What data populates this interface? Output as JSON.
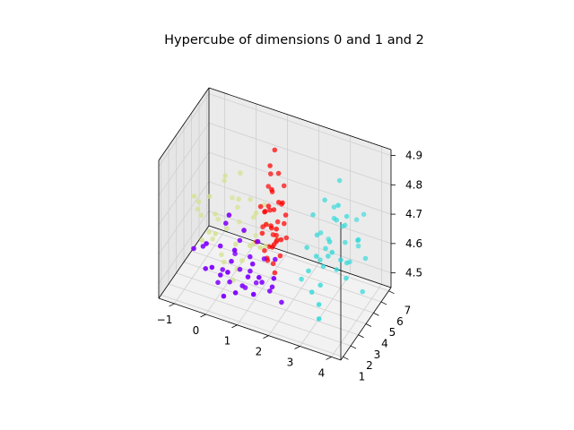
{
  "chart_data": {
    "type": "scatter",
    "title": "Hypercube of dimensions 0 and 1 and 2",
    "xlim": [
      -1.5,
      4.3
    ],
    "ylim": [
      0.7,
      7.3
    ],
    "zlim": [
      4.45,
      4.92
    ],
    "x_ticks": [
      "−1",
      "0",
      "1",
      "2",
      "3",
      "4"
    ],
    "y_ticks": [
      "1",
      "2",
      "3",
      "4",
      "5",
      "6",
      "7"
    ],
    "z_ticks": [
      "4.5",
      "4.6",
      "4.7",
      "4.8",
      "4.9"
    ],
    "grid": true,
    "colors": {
      "purple": "#7f00ff",
      "cyan": "#2ad8d8",
      "khaki": "#d4e28c",
      "red": "#ff0000"
    },
    "series": [
      {
        "color": "#7f00ff",
        "points": [
          [
            0.0,
            1.5,
            4.58
          ],
          [
            0.2,
            1.8,
            4.55
          ],
          [
            0.5,
            2.0,
            4.6
          ],
          [
            0.8,
            2.2,
            4.52
          ],
          [
            1.0,
            2.4,
            4.57
          ],
          [
            1.2,
            1.9,
            4.62
          ],
          [
            0.3,
            2.6,
            4.5
          ],
          [
            0.7,
            1.6,
            4.66
          ],
          [
            1.4,
            2.3,
            4.55
          ],
          [
            0.1,
            2.2,
            4.63
          ],
          [
            -0.3,
            1.9,
            4.55
          ],
          [
            0.9,
            2.8,
            4.6
          ],
          [
            1.6,
            2.5,
            4.52
          ],
          [
            0.4,
            1.4,
            4.5
          ],
          [
            1.1,
            1.7,
            4.58
          ],
          [
            0.6,
            2.7,
            4.55
          ],
          [
            1.3,
            3.0,
            4.6
          ],
          [
            0.0,
            2.9,
            4.52
          ],
          [
            -0.5,
            2.4,
            4.6
          ],
          [
            1.8,
            2.0,
            4.56
          ],
          [
            0.8,
            1.3,
            4.53
          ],
          [
            0.5,
            3.1,
            4.63
          ],
          [
            1.5,
            1.5,
            4.6
          ],
          [
            -0.2,
            1.6,
            4.65
          ],
          [
            1.0,
            3.2,
            4.5
          ],
          [
            0.2,
            2.5,
            4.7
          ],
          [
            1.7,
            2.8,
            4.62
          ],
          [
            0.9,
            2.0,
            4.72
          ],
          [
            -0.7,
            2.0,
            4.6
          ],
          [
            1.2,
            2.6,
            4.67
          ],
          [
            0.3,
            3.3,
            4.57
          ],
          [
            2.0,
            2.4,
            4.5
          ],
          [
            0.7,
            3.0,
            4.48
          ],
          [
            1.4,
            1.2,
            4.55
          ],
          [
            -0.1,
            2.7,
            4.48
          ],
          [
            0.6,
            1.1,
            4.6
          ],
          [
            1.9,
            1.8,
            4.6
          ],
          [
            0.4,
            2.1,
            4.75
          ]
        ]
      },
      {
        "color": "#2ad8d8",
        "points": [
          [
            2.5,
            5.0,
            4.65
          ],
          [
            2.7,
            5.3,
            4.6
          ],
          [
            3.0,
            5.5,
            4.7
          ],
          [
            3.2,
            5.8,
            4.62
          ],
          [
            2.8,
            6.0,
            4.68
          ],
          [
            3.4,
            5.2,
            4.58
          ],
          [
            2.6,
            5.6,
            4.75
          ],
          [
            3.1,
            6.2,
            4.66
          ],
          [
            2.9,
            4.8,
            4.6
          ],
          [
            3.3,
            5.6,
            4.72
          ],
          [
            2.4,
            5.9,
            4.62
          ],
          [
            3.6,
            5.9,
            4.64
          ],
          [
            2.7,
            6.4,
            4.7
          ],
          [
            3.0,
            4.6,
            4.66
          ],
          [
            3.5,
            6.3,
            4.6
          ],
          [
            2.3,
            5.3,
            4.7
          ],
          [
            3.2,
            4.9,
            4.78
          ],
          [
            2.6,
            4.5,
            4.6
          ],
          [
            3.7,
            5.4,
            4.66
          ],
          [
            2.9,
            6.7,
            4.63
          ],
          [
            3.4,
            4.4,
            4.62
          ],
          [
            2.5,
            6.5,
            4.58
          ],
          [
            3.1,
            5.1,
            4.55
          ],
          [
            2.8,
            4.2,
            4.52
          ],
          [
            3.6,
            6.6,
            4.7
          ],
          [
            2.2,
            4.9,
            4.6
          ],
          [
            3.3,
            6.9,
            4.66
          ],
          [
            2.7,
            5.0,
            4.55
          ],
          [
            3.0,
            5.9,
            4.82
          ],
          [
            3.8,
            6.0,
            4.58
          ],
          [
            2.4,
            4.3,
            4.55
          ],
          [
            3.2,
            4.1,
            4.65
          ],
          [
            2.6,
            3.9,
            4.5
          ],
          [
            3.5,
            4.7,
            4.55
          ],
          [
            2.9,
            3.6,
            4.48
          ],
          [
            2.1,
            4.6,
            4.5
          ],
          [
            3.9,
            5.2,
            4.5
          ],
          [
            3.0,
            3.2,
            4.45
          ],
          [
            2.5,
            5.4,
            4.55
          ],
          [
            3.3,
            6.0,
            4.55
          ]
        ]
      },
      {
        "color": "#d4e28c",
        "points": [
          [
            -0.5,
            4.0,
            4.65
          ],
          [
            -0.2,
            4.3,
            4.6
          ],
          [
            0.1,
            4.6,
            4.7
          ],
          [
            0.4,
            4.1,
            4.62
          ],
          [
            -0.8,
            4.5,
            4.68
          ],
          [
            0.2,
            3.8,
            4.58
          ],
          [
            -0.4,
            4.9,
            4.75
          ],
          [
            0.6,
            4.5,
            4.66
          ],
          [
            -1.0,
            4.2,
            4.62
          ],
          [
            0.0,
            5.1,
            4.6
          ],
          [
            0.5,
            4.9,
            4.55
          ],
          [
            -0.6,
            3.6,
            4.6
          ],
          [
            0.8,
            4.0,
            4.7
          ],
          [
            -0.3,
            5.4,
            4.66
          ],
          [
            -1.2,
            4.7,
            4.64
          ],
          [
            0.3,
            5.3,
            4.68
          ],
          [
            -0.9,
            3.9,
            4.55
          ],
          [
            0.7,
            3.6,
            4.6
          ],
          [
            -0.1,
            3.5,
            4.52
          ],
          [
            0.9,
            5.0,
            4.63
          ],
          [
            -0.7,
            5.2,
            4.58
          ],
          [
            0.2,
            4.4,
            4.8
          ],
          [
            -1.3,
            5.0,
            4.6
          ],
          [
            0.5,
            3.4,
            4.55
          ],
          [
            -0.4,
            4.4,
            4.5
          ],
          [
            1.0,
            4.4,
            4.58
          ],
          [
            -0.2,
            5.7,
            4.62
          ],
          [
            0.4,
            5.6,
            4.55
          ],
          [
            -1.1,
            3.7,
            4.7
          ],
          [
            0.1,
            3.9,
            4.45
          ],
          [
            -0.6,
            5.6,
            4.7
          ],
          [
            1.1,
            3.3,
            4.62
          ],
          [
            -0.8,
            4.9,
            4.52
          ],
          [
            0.6,
            5.9,
            4.65
          ],
          [
            -0.3,
            3.2,
            4.62
          ],
          [
            1.3,
            4.8,
            4.6
          ],
          [
            0.0,
            4.8,
            4.45
          ]
        ]
      },
      {
        "color": "#ff0000",
        "points": [
          [
            1.0,
            4.5,
            4.65
          ],
          [
            1.2,
            4.7,
            4.7
          ],
          [
            1.1,
            4.9,
            4.75
          ],
          [
            1.3,
            4.6,
            4.62
          ],
          [
            0.9,
            4.8,
            4.68
          ],
          [
            1.4,
            5.0,
            4.72
          ],
          [
            1.2,
            4.4,
            4.78
          ],
          [
            1.0,
            5.1,
            4.8
          ],
          [
            1.3,
            4.3,
            4.6
          ],
          [
            1.1,
            4.6,
            4.85
          ],
          [
            1.5,
            4.8,
            4.66
          ],
          [
            0.8,
            4.6,
            4.7
          ],
          [
            1.2,
            5.2,
            4.64
          ],
          [
            1.4,
            4.5,
            4.74
          ],
          [
            1.0,
            4.3,
            4.7
          ],
          [
            1.1,
            5.0,
            4.6
          ],
          [
            1.3,
            4.9,
            4.82
          ],
          [
            0.9,
            4.4,
            4.62
          ],
          [
            1.2,
            4.8,
            4.9
          ],
          [
            1.4,
            4.2,
            4.66
          ],
          [
            1.0,
            4.9,
            4.56
          ],
          [
            1.6,
            4.6,
            4.7
          ],
          [
            0.8,
            4.9,
            4.62
          ],
          [
            1.3,
            5.3,
            4.7
          ],
          [
            1.1,
            4.2,
            4.55
          ],
          [
            1.5,
            5.1,
            4.6
          ],
          [
            1.2,
            4.5,
            4.58
          ],
          [
            0.9,
            5.2,
            4.75
          ],
          [
            1.4,
            4.7,
            4.55
          ],
          [
            1.0,
            4.7,
            4.52
          ],
          [
            1.2,
            5.0,
            4.58
          ],
          [
            1.3,
            4.4,
            4.5
          ],
          [
            1.1,
            4.8,
            4.63
          ],
          [
            0.7,
            4.5,
            4.58
          ],
          [
            1.5,
            4.4,
            4.62
          ],
          [
            1.0,
            5.0,
            4.68
          ],
          [
            1.2,
            4.3,
            4.66
          ],
          [
            1.4,
            5.2,
            4.77
          ],
          [
            1.1,
            4.4,
            4.72
          ],
          [
            1.3,
            4.7,
            4.6
          ],
          [
            0.9,
            4.7,
            4.55
          ],
          [
            1.2,
            4.6,
            4.52
          ]
        ]
      }
    ]
  }
}
